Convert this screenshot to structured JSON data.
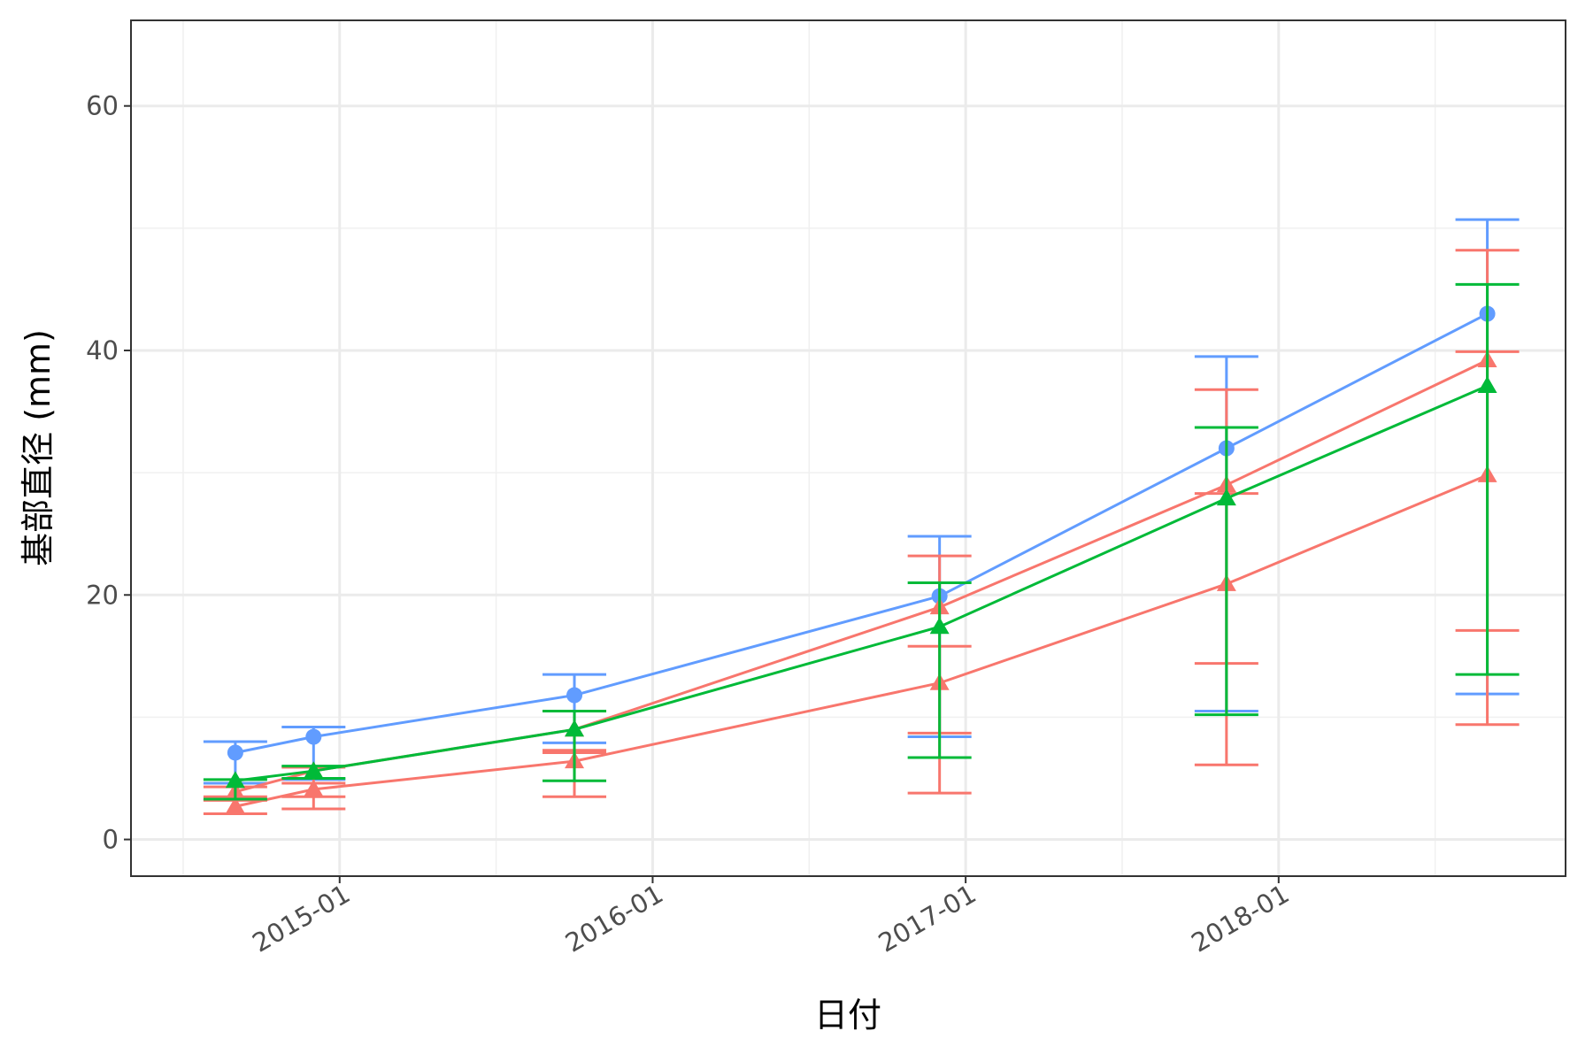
{
  "chart_data": {
    "type": "line",
    "x_label": "日付",
    "y_label": "基部直径 (mm)",
    "x": [
      "2014-09",
      "2014-12",
      "2015-10",
      "2016-12",
      "2017-11",
      "2018-09"
    ],
    "xlim": [
      "2014-05",
      "2018-12"
    ],
    "xticks": [
      "2015-01",
      "2016-01",
      "2017-01",
      "2018-01"
    ],
    "x_minor_ticks": [
      "2014-07",
      "2015-07",
      "2016-07",
      "2017-07",
      "2018-07"
    ],
    "ylim": [
      -3,
      67
    ],
    "yticks": [
      0,
      20,
      40,
      60
    ],
    "y_minor_ticks": [
      10,
      30,
      50
    ],
    "grid": true,
    "series": [
      {
        "color": "#619CFF",
        "shape": "circle",
        "values": [
          7.1,
          8.4,
          11.8,
          19.9,
          32.0,
          43.0
        ],
        "upper": [
          8.0,
          9.2,
          13.5,
          24.8,
          39.5,
          50.7
        ],
        "lower": [
          4.6,
          4.9,
          7.9,
          8.4,
          10.5,
          11.9
        ]
      },
      {
        "color": "#F8766D",
        "shape": "triangle",
        "values": [
          3.9,
          5.6,
          9.0,
          19.0,
          29.0,
          39.2
        ],
        "upper": [
          4.3,
          5.9,
          10.5,
          23.2,
          36.8,
          48.2
        ],
        "lower": [
          3.5,
          3.5,
          7.1,
          8.7,
          14.4,
          9.4
        ]
      },
      {
        "color": "#F8766D",
        "shape": "triangle",
        "values": [
          2.7,
          4.1,
          6.4,
          12.8,
          20.9,
          29.8
        ],
        "upper": [
          3.2,
          4.6,
          7.3,
          15.8,
          28.3,
          39.9
        ],
        "lower": [
          2.1,
          2.5,
          3.5,
          3.8,
          6.1,
          17.1
        ]
      },
      {
        "color": "#00BA38",
        "shape": "triangle",
        "values": [
          4.8,
          5.6,
          9.0,
          17.4,
          27.9,
          37.1
        ],
        "upper": [
          4.9,
          6.0,
          10.5,
          21.0,
          33.7,
          45.4
        ],
        "lower": [
          3.3,
          5.0,
          4.8,
          6.7,
          10.2,
          13.5
        ]
      }
    ]
  }
}
